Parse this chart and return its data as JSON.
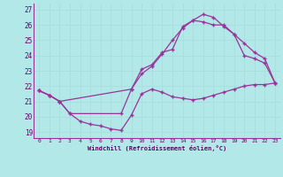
{
  "bg_color": "#b3e8e8",
  "line_color": "#993399",
  "grid_color": "#aadddd",
  "xlabel": "Windchill (Refroidissement éolien,°C)",
  "ylabel_ticks": [
    19,
    20,
    21,
    22,
    23,
    24,
    25,
    26,
    27
  ],
  "xlabel_ticks": [
    0,
    1,
    2,
    3,
    4,
    5,
    6,
    7,
    8,
    9,
    10,
    11,
    12,
    13,
    14,
    15,
    16,
    17,
    18,
    19,
    20,
    21,
    22,
    23
  ],
  "ylim": [
    18.6,
    27.4
  ],
  "xlim": [
    -0.5,
    23.5
  ],
  "series1_x": [
    0,
    1,
    2,
    3,
    4,
    5,
    6,
    7,
    8,
    9,
    10,
    11,
    12,
    13,
    14,
    15,
    16,
    17,
    18,
    19,
    20,
    21,
    22,
    23
  ],
  "series1_y": [
    21.7,
    21.4,
    21.0,
    20.2,
    19.7,
    19.5,
    19.4,
    19.2,
    19.1,
    20.1,
    21.5,
    21.8,
    21.6,
    21.3,
    21.2,
    21.1,
    21.2,
    21.4,
    21.6,
    21.8,
    22.0,
    22.1,
    22.1,
    22.2
  ],
  "series2_x": [
    0,
    1,
    2,
    9,
    10,
    11,
    12,
    13,
    14,
    15,
    16,
    17,
    18,
    19,
    20,
    21,
    22,
    23
  ],
  "series2_y": [
    21.7,
    21.4,
    21.0,
    21.8,
    22.8,
    23.3,
    24.1,
    25.0,
    25.8,
    26.3,
    26.7,
    26.5,
    25.9,
    25.4,
    24.0,
    23.8,
    23.5,
    22.2
  ],
  "series3_x": [
    0,
    1,
    2,
    3,
    8,
    9,
    10,
    11,
    12,
    13,
    14,
    15,
    16,
    17,
    18,
    19,
    20,
    21,
    22,
    23
  ],
  "series3_y": [
    21.7,
    21.4,
    21.0,
    20.2,
    20.2,
    21.8,
    23.1,
    23.4,
    24.2,
    24.4,
    25.9,
    26.3,
    26.2,
    26.0,
    26.0,
    25.4,
    24.8,
    24.2,
    23.8,
    22.2
  ]
}
